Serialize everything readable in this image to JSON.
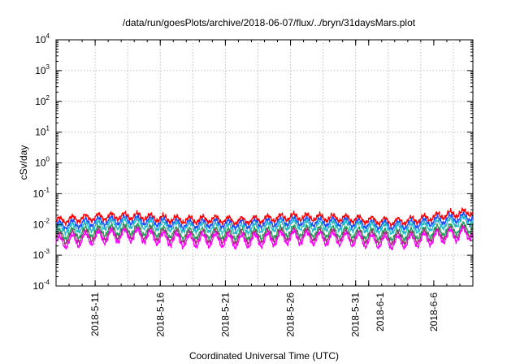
{
  "chart_data": {
    "type": "line",
    "title": "/data/run/goesPlots/archive/2018-06-07/flux/../bryn/31daysMars.plot",
    "xlabel": "Coordinated Universal Time (UTC)",
    "ylabel": "cSv/day",
    "y_scale": "log",
    "ylim": [
      0.0001,
      10000
    ],
    "xlim": [
      "2018-05-08",
      "2018-06-09"
    ],
    "grid": true,
    "y_ticks": [
      {
        "base": "10",
        "exp": "-4"
      },
      {
        "base": "10",
        "exp": "-3"
      },
      {
        "base": "10",
        "exp": "-2"
      },
      {
        "base": "10",
        "exp": "-1"
      },
      {
        "base": "10",
        "exp": "0"
      },
      {
        "base": "10",
        "exp": "1"
      },
      {
        "base": "10",
        "exp": "2"
      },
      {
        "base": "10",
        "exp": "3"
      },
      {
        "base": "10",
        "exp": "4"
      }
    ],
    "x_ticks": [
      {
        "label": "2018-5-11",
        "date": "2018-05-11"
      },
      {
        "label": "2018-5-16",
        "date": "2018-05-16"
      },
      {
        "label": "2018-5-21",
        "date": "2018-05-21"
      },
      {
        "label": "2018-5-26",
        "date": "2018-05-26"
      },
      {
        "label": "2018-5-31",
        "date": "2018-05-31"
      },
      {
        "label": "2018-6-1",
        "date": "2018-06-01"
      },
      {
        "label": "2018-6-6",
        "date": "2018-06-06"
      }
    ],
    "series": [
      {
        "color": "#ff0000",
        "x": [
          "2018-05-08",
          "2018-05-10",
          "2018-05-12",
          "2018-05-14",
          "2018-05-16",
          "2018-05-18",
          "2018-05-20",
          "2018-05-22",
          "2018-05-24",
          "2018-05-26",
          "2018-05-28",
          "2018-05-30",
          "2018-06-01",
          "2018-06-03",
          "2018-06-05",
          "2018-06-07",
          "2018-06-09"
        ],
        "y": [
          0.013,
          0.016,
          0.018,
          0.019,
          0.016,
          0.014,
          0.015,
          0.013,
          0.015,
          0.018,
          0.017,
          0.016,
          0.014,
          0.012,
          0.015,
          0.021,
          0.026
        ]
      },
      {
        "color": "#1a4cff",
        "x": [
          "2018-05-08",
          "2018-05-10",
          "2018-05-12",
          "2018-05-14",
          "2018-05-16",
          "2018-05-18",
          "2018-05-20",
          "2018-05-22",
          "2018-05-24",
          "2018-05-26",
          "2018-05-28",
          "2018-05-30",
          "2018-06-01",
          "2018-06-03",
          "2018-06-05",
          "2018-06-07",
          "2018-06-09"
        ],
        "y": [
          0.009,
          0.011,
          0.013,
          0.014,
          0.012,
          0.01,
          0.011,
          0.01,
          0.011,
          0.013,
          0.012,
          0.012,
          0.01,
          0.009,
          0.011,
          0.015,
          0.018
        ]
      },
      {
        "color": "#22b8c8",
        "x": [
          "2018-05-08",
          "2018-05-10",
          "2018-05-12",
          "2018-05-14",
          "2018-05-16",
          "2018-05-18",
          "2018-05-20",
          "2018-05-22",
          "2018-05-24",
          "2018-05-26",
          "2018-05-28",
          "2018-05-30",
          "2018-06-01",
          "2018-06-03",
          "2018-06-05",
          "2018-06-07",
          "2018-06-09"
        ],
        "y": [
          0.007,
          0.008,
          0.01,
          0.011,
          0.009,
          0.008,
          0.008,
          0.007,
          0.008,
          0.01,
          0.009,
          0.009,
          0.008,
          0.007,
          0.008,
          0.011,
          0.014
        ]
      },
      {
        "color": "#22a05a",
        "x": [
          "2018-05-08",
          "2018-05-10",
          "2018-05-12",
          "2018-05-14",
          "2018-05-16",
          "2018-05-18",
          "2018-05-20",
          "2018-05-22",
          "2018-05-24",
          "2018-05-26",
          "2018-05-28",
          "2018-05-30",
          "2018-06-01",
          "2018-06-03",
          "2018-06-05",
          "2018-06-07",
          "2018-06-09"
        ],
        "y": [
          0.0045,
          0.0055,
          0.0065,
          0.007,
          0.0058,
          0.005,
          0.0052,
          0.0048,
          0.0052,
          0.0062,
          0.0058,
          0.0056,
          0.005,
          0.0045,
          0.0052,
          0.0068,
          0.008
        ]
      },
      {
        "color": "#a0307a",
        "x": [
          "2018-05-08",
          "2018-05-10",
          "2018-05-12",
          "2018-05-14",
          "2018-05-16",
          "2018-05-18",
          "2018-05-20",
          "2018-05-22",
          "2018-05-24",
          "2018-05-26",
          "2018-05-28",
          "2018-05-30",
          "2018-06-01",
          "2018-06-03",
          "2018-06-05",
          "2018-06-07",
          "2018-06-09"
        ],
        "y": [
          0.0035,
          0.0042,
          0.005,
          0.0054,
          0.0045,
          0.0039,
          0.0041,
          0.0037,
          0.004,
          0.0048,
          0.0045,
          0.0043,
          0.0039,
          0.0035,
          0.004,
          0.0052,
          0.0062
        ]
      },
      {
        "color": "#ff00ff",
        "x": [
          "2018-05-08",
          "2018-05-10",
          "2018-05-12",
          "2018-05-14",
          "2018-05-16",
          "2018-05-18",
          "2018-05-20",
          "2018-05-22",
          "2018-05-24",
          "2018-05-26",
          "2018-05-28",
          "2018-05-30",
          "2018-06-01",
          "2018-06-03",
          "2018-06-05",
          "2018-06-07",
          "2018-06-09"
        ],
        "y": [
          0.0025,
          0.0032,
          0.004,
          0.0045,
          0.0035,
          0.0029,
          0.0031,
          0.0028,
          0.0031,
          0.0038,
          0.0035,
          0.0034,
          0.0029,
          0.0026,
          0.0031,
          0.0042,
          0.0052
        ]
      }
    ]
  }
}
